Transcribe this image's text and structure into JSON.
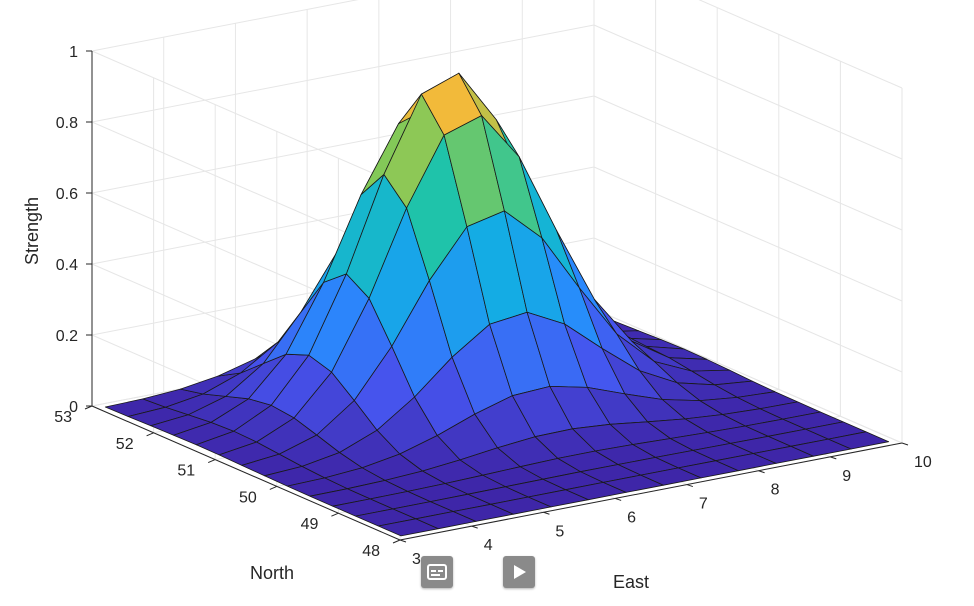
{
  "chart_data": {
    "type": "surface",
    "xlabel": "East",
    "ylabel": "North",
    "zlabel": "Strength",
    "xlim": [
      3,
      10
    ],
    "ylim": [
      48,
      53
    ],
    "zlim": [
      0,
      1
    ],
    "xticks": [
      "3",
      "4",
      "5",
      "6",
      "7",
      "8",
      "9",
      "10"
    ],
    "yticks": [
      "48",
      "49",
      "50",
      "51",
      "52",
      "53"
    ],
    "zticks": [
      "0",
      "0.2",
      "0.4",
      "0.6",
      "0.8",
      "1"
    ],
    "grid": true,
    "colormap": "parula",
    "surface": {
      "x_range": [
        3.1,
        9.9
      ],
      "y_range": [
        48.1,
        52.9
      ],
      "nx": 13,
      "ny": 13,
      "peak": {
        "x": 6.6,
        "y": 51.4,
        "z": 0.92
      },
      "description_function": "z = 0.92 * exp(-((x-6.6)^2/(2*1.1^2) + (y-51.4)^2/(2*0.75^2)))"
    }
  },
  "controls": {
    "caption_icon": "closed-caption-icon",
    "play_icon": "play-icon"
  },
  "colors": {
    "surface_low": "#3e26a8",
    "surface_mid": "#12bec6",
    "surface_high": "#f9d32a",
    "edge": "#1a1a1a",
    "grid": "#e6e6e6",
    "axis": "#262626"
  }
}
